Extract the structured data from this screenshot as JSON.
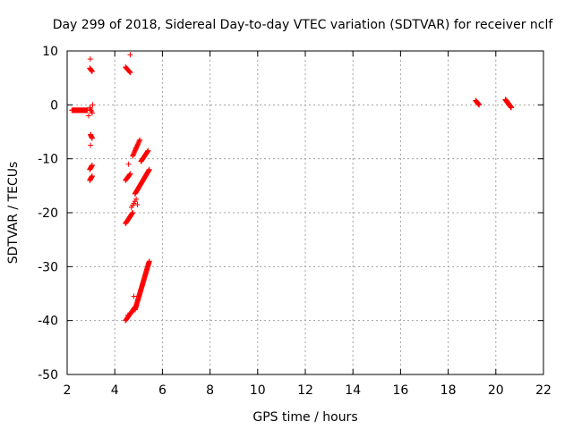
{
  "chart_data": {
    "type": "scatter",
    "title": "Day 299 of 2018, Sidereal Day-to-day VTEC variation (SDTVAR) for receiver nclf",
    "xlabel": "GPS time / hours",
    "ylabel": "SDTVAR / TECUs",
    "xlim": [
      2,
      22
    ],
    "ylim": [
      -50,
      10
    ],
    "xticks": [
      2,
      4,
      6,
      8,
      10,
      12,
      14,
      16,
      18,
      20,
      22
    ],
    "yticks": [
      -50,
      -40,
      -30,
      -20,
      -10,
      0,
      10
    ],
    "xtick_labels": [
      "2",
      "4",
      "6",
      "8",
      "10",
      "12",
      "14",
      "16",
      "18",
      "20",
      "22"
    ],
    "ytick_labels": [
      "-50",
      "-40",
      "-30",
      "-20",
      "-10",
      "0",
      "10"
    ],
    "grid": true,
    "marker": "+",
    "color": "#ff0000",
    "series": [
      {
        "name": "base_cluster",
        "x_start": 2.2,
        "x_end": 2.85,
        "y_start": -1.0,
        "y_end": -1.0,
        "n": 40
      },
      {
        "name": "t3_top",
        "x_start": 2.95,
        "x_end": 3.05,
        "y_start": 6.8,
        "y_end": 6.2,
        "n": 8
      },
      {
        "name": "t3_zero",
        "x_start": 2.95,
        "x_end": 3.05,
        "y_start": -0.5,
        "y_end": -1.5,
        "n": 5
      },
      {
        "name": "t3_a",
        "x_start": 2.98,
        "x_end": 3.05,
        "y_start": -5.5,
        "y_end": -6.2,
        "n": 6
      },
      {
        "name": "t3_b",
        "x_start": 2.95,
        "x_end": 3.05,
        "y_start": -12.0,
        "y_end": -11.2,
        "n": 8
      },
      {
        "name": "t3_c",
        "x_start": 2.95,
        "x_end": 3.05,
        "y_start": -14.0,
        "y_end": -13.2,
        "n": 8
      },
      {
        "name": "t4_top",
        "x_start": 4.45,
        "x_end": 4.65,
        "y_start": 7.0,
        "y_end": 6.0,
        "n": 10
      },
      {
        "name": "t4_a",
        "x_start": 4.45,
        "x_end": 4.65,
        "y_start": -14.0,
        "y_end": -12.8,
        "n": 10
      },
      {
        "name": "t4_b",
        "x_start": 4.45,
        "x_end": 4.75,
        "y_start": -22.0,
        "y_end": -20.0,
        "n": 16
      },
      {
        "name": "t4_c",
        "x_start": 4.45,
        "x_end": 4.85,
        "y_start": -40.0,
        "y_end": -37.5,
        "n": 18
      },
      {
        "name": "ramp_main",
        "x_start": 4.85,
        "x_end": 5.45,
        "y_start": -38.0,
        "y_end": -29.0,
        "n": 60
      },
      {
        "name": "ramp_mid",
        "x_start": 4.85,
        "x_end": 5.45,
        "y_start": -16.5,
        "y_end": -12.0,
        "n": 40
      },
      {
        "name": "ramp_low",
        "x_start": 4.75,
        "x_end": 5.05,
        "y_start": -9.5,
        "y_end": -6.5,
        "n": 16
      },
      {
        "name": "ramp_low2",
        "x_start": 5.1,
        "x_end": 5.4,
        "y_start": -10.5,
        "y_end": -8.5,
        "n": 16
      },
      {
        "name": "t5_stray",
        "x_start": 4.7,
        "x_end": 4.9,
        "y_start": -19.0,
        "y_end": -17.5,
        "n": 5
      },
      {
        "name": "t19",
        "x_start": 19.15,
        "x_end": 19.3,
        "y_start": 0.8,
        "y_end": 0.0,
        "n": 14
      },
      {
        "name": "t20_5",
        "x_start": 20.4,
        "x_end": 20.65,
        "y_start": 1.0,
        "y_end": -0.5,
        "n": 40
      }
    ],
    "extra_points": [
      {
        "x": 2.97,
        "y": 8.5
      },
      {
        "x": 3.07,
        "y": 0.0
      },
      {
        "x": 2.98,
        "y": -7.5
      },
      {
        "x": 2.9,
        "y": -2.0
      },
      {
        "x": 4.65,
        "y": 9.3
      },
      {
        "x": 4.58,
        "y": -11.0
      },
      {
        "x": 4.55,
        "y": -39.0
      },
      {
        "x": 4.8,
        "y": -35.5
      },
      {
        "x": 4.7,
        "y": -38.5
      },
      {
        "x": 4.75,
        "y": -20.0
      },
      {
        "x": 4.95,
        "y": -18.5
      },
      {
        "x": 4.88,
        "y": -8.0
      }
    ]
  }
}
